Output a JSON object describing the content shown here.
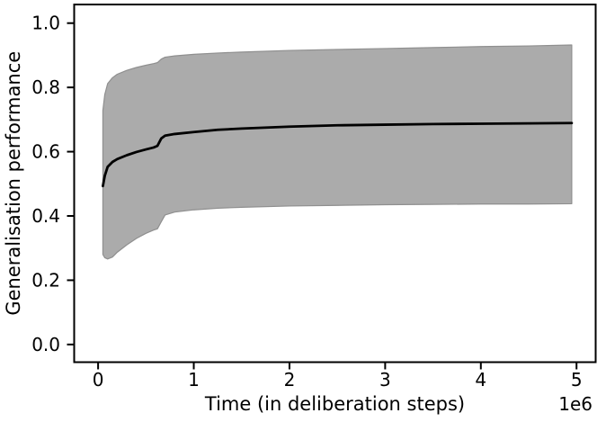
{
  "figure": {
    "background": "#ffffff"
  },
  "colors": {
    "spine": "#000000",
    "tick": "#000000",
    "text": "#000000",
    "mean_line": "#000000",
    "band_fill": "#ababab",
    "band_edge": "#8f8f8f"
  },
  "chart_data": {
    "type": "line",
    "title": "",
    "xlabel": "Time (in deliberation steps)",
    "ylabel": "Generalisation performance",
    "x_offset_label": "1e6",
    "x_scale_factor": 1000000,
    "xlim": [
      -0.25,
      5.2
    ],
    "ylim": [
      -0.055,
      1.058
    ],
    "xticks": {
      "values": [
        0,
        1,
        2,
        3,
        4,
        5
      ],
      "labels": [
        "0",
        "1",
        "2",
        "3",
        "4",
        "5"
      ]
    },
    "yticks": {
      "values": [
        0.0,
        0.2,
        0.4,
        0.6,
        0.8,
        1.0
      ],
      "labels": [
        "0.0",
        "0.2",
        "0.4",
        "0.6",
        "0.8",
        "1.0"
      ]
    },
    "grid": false,
    "legend": "none",
    "x": [
      0.05,
      0.07,
      0.1,
      0.15,
      0.2,
      0.3,
      0.4,
      0.5,
      0.58,
      0.62,
      0.66,
      0.7,
      0.8,
      1.0,
      1.25,
      1.5,
      2.0,
      2.5,
      3.0,
      3.5,
      4.0,
      4.5,
      4.95
    ],
    "series": [
      {
        "name": "mean generalisation performance",
        "color": "#000000",
        "line_width": 2.8,
        "y": [
          0.493,
          0.525,
          0.553,
          0.568,
          0.577,
          0.589,
          0.599,
          0.607,
          0.613,
          0.618,
          0.641,
          0.65,
          0.655,
          0.661,
          0.668,
          0.672,
          0.678,
          0.682,
          0.684,
          0.686,
          0.687,
          0.688,
          0.689
        ]
      }
    ],
    "band": {
      "name": "performance range band",
      "fill": "#ababab",
      "edge": "#8f8f8f",
      "upper": [
        0.728,
        0.778,
        0.812,
        0.83,
        0.841,
        0.853,
        0.862,
        0.869,
        0.874,
        0.877,
        0.888,
        0.894,
        0.898,
        0.903,
        0.907,
        0.91,
        0.915,
        0.918,
        0.921,
        0.924,
        0.927,
        0.929,
        0.932
      ],
      "lower": [
        0.28,
        0.27,
        0.266,
        0.272,
        0.287,
        0.31,
        0.33,
        0.346,
        0.356,
        0.36,
        0.382,
        0.403,
        0.412,
        0.419,
        0.424,
        0.427,
        0.431,
        0.433,
        0.435,
        0.436,
        0.437,
        0.437,
        0.438
      ]
    }
  }
}
